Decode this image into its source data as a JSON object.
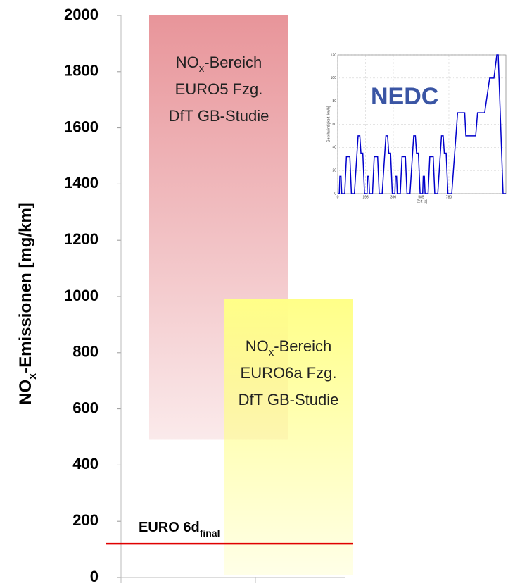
{
  "chart_data": [
    {
      "type": "range-bar",
      "y_label": [
        "NO",
        "x",
        "-Emissionen [mg/km]"
      ],
      "ylim": [
        0,
        2000
      ],
      "yticks": [
        0,
        200,
        400,
        600,
        800,
        1000,
        1200,
        1400,
        1600,
        1800,
        2000
      ],
      "series": [
        {
          "label": [
            [
              "NO",
              "x",
              "-Bereich"
            ],
            "EURO5 Fzg.",
            "DfT GB-Studie"
          ],
          "color": "#e8959a",
          "low": 490,
          "high": 2000
        },
        {
          "label": [
            [
              "NO",
              "x",
              "-Bereich"
            ],
            "EURO6a Fzg.",
            "DfT GB-Studie"
          ],
          "color": "#ffff88",
          "low": 10,
          "high": 990
        }
      ],
      "reference_lines": [
        {
          "value": 120,
          "color": "#e00000",
          "label": [
            "EURO 6d",
            "final"
          ]
        }
      ]
    },
    {
      "type": "line",
      "annotation": "NEDC",
      "annotation_color": "#3a55a4",
      "x_label": "Zeit [s]",
      "y_label": "Geschwindigkeit [km/h]",
      "xlim": [
        0,
        1180
      ],
      "xticks": [
        0,
        195,
        390,
        585,
        780
      ],
      "ylim": [
        0,
        120
      ],
      "yticks": [
        0,
        20,
        40,
        60,
        80,
        100,
        120
      ],
      "grid": true,
      "series": [
        {
          "color": "#0000cc",
          "x": [
            0,
            11,
            15,
            23,
            28,
            49,
            61,
            85,
            96,
            117,
            143,
            155,
            163,
            176,
            188,
            195,
            206,
            210,
            218,
            223,
            244,
            256,
            280,
            291,
            312,
            338,
            350,
            358,
            371,
            383,
            390,
            401,
            405,
            413,
            418,
            439,
            451,
            475,
            486,
            507,
            533,
            545,
            553,
            566,
            578,
            585,
            596,
            600,
            608,
            613,
            634,
            646,
            670,
            681,
            702,
            728,
            740,
            748,
            761,
            773,
            780,
            800,
            841,
            891,
            899,
            968,
            981,
            1031,
            1066,
            1096,
            1116,
            1126,
            1160,
            1180
          ],
          "values": [
            0,
            0,
            15,
            15,
            0,
            0,
            32,
            32,
            0,
            0,
            50,
            50,
            35,
            35,
            0,
            0,
            0,
            15,
            15,
            0,
            0,
            32,
            32,
            0,
            0,
            50,
            50,
            35,
            35,
            0,
            0,
            0,
            15,
            15,
            0,
            0,
            32,
            32,
            0,
            0,
            50,
            50,
            35,
            35,
            0,
            0,
            0,
            15,
            15,
            0,
            0,
            32,
            32,
            0,
            0,
            50,
            50,
            35,
            35,
            0,
            0,
            0,
            70,
            70,
            50,
            50,
            70,
            70,
            100,
            100,
            120,
            120,
            0,
            0
          ]
        }
      ]
    }
  ]
}
